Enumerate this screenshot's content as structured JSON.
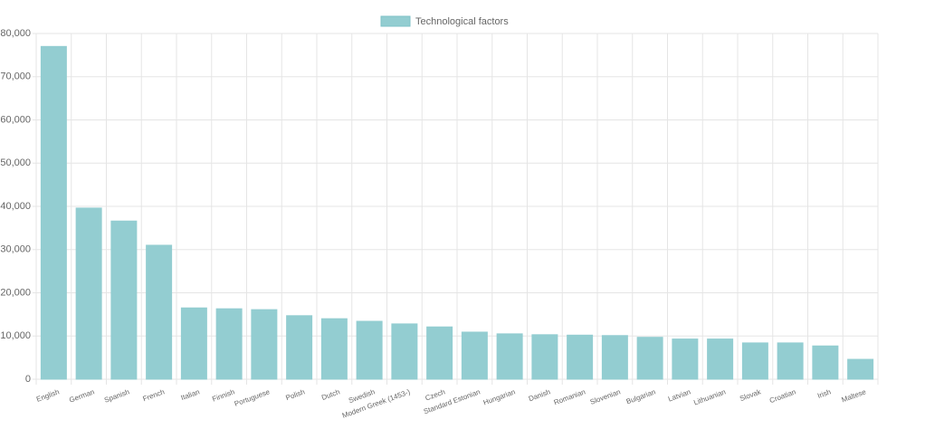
{
  "chart_data": {
    "type": "bar",
    "categories": [
      "English",
      "German",
      "Spanish",
      "French",
      "Italian",
      "Finnish",
      "Portuguese",
      "Polish",
      "Dutch",
      "Swedish",
      "Modern Greek (1453-)",
      "Czech",
      "Standard Estonian",
      "Hungarian",
      "Danish",
      "Romanian",
      "Slovenian",
      "Bulgarian",
      "Latvian",
      "Lithuanian",
      "Slovak",
      "Croatian",
      "Irish",
      "Maltese"
    ],
    "series": [
      {
        "name": "Technological factors",
        "color": "#93cdd1",
        "values": [
          77000,
          39600,
          36600,
          31000,
          16500,
          16300,
          16100,
          14700,
          14000,
          13400,
          12800,
          12100,
          10900,
          10500,
          10300,
          10200,
          10100,
          9700,
          9300,
          9300,
          8400,
          8400,
          7700,
          4600
        ]
      }
    ],
    "ylim": [
      0,
      80000
    ],
    "yticks": [
      0,
      {
        "value": 10000,
        "label": "10,000"
      },
      {
        "value": 20000,
        "label": "20,000"
      },
      {
        "value": 30000,
        "label": "30,000"
      },
      {
        "value": 40000,
        "label": "40,000"
      },
      {
        "value": 50000,
        "label": "50,000"
      },
      {
        "value": 60000,
        "label": "60,000"
      },
      {
        "value": 70000,
        "label": "70,000"
      },
      {
        "value": 80000,
        "label": "80,000"
      }
    ],
    "grid": true
  }
}
